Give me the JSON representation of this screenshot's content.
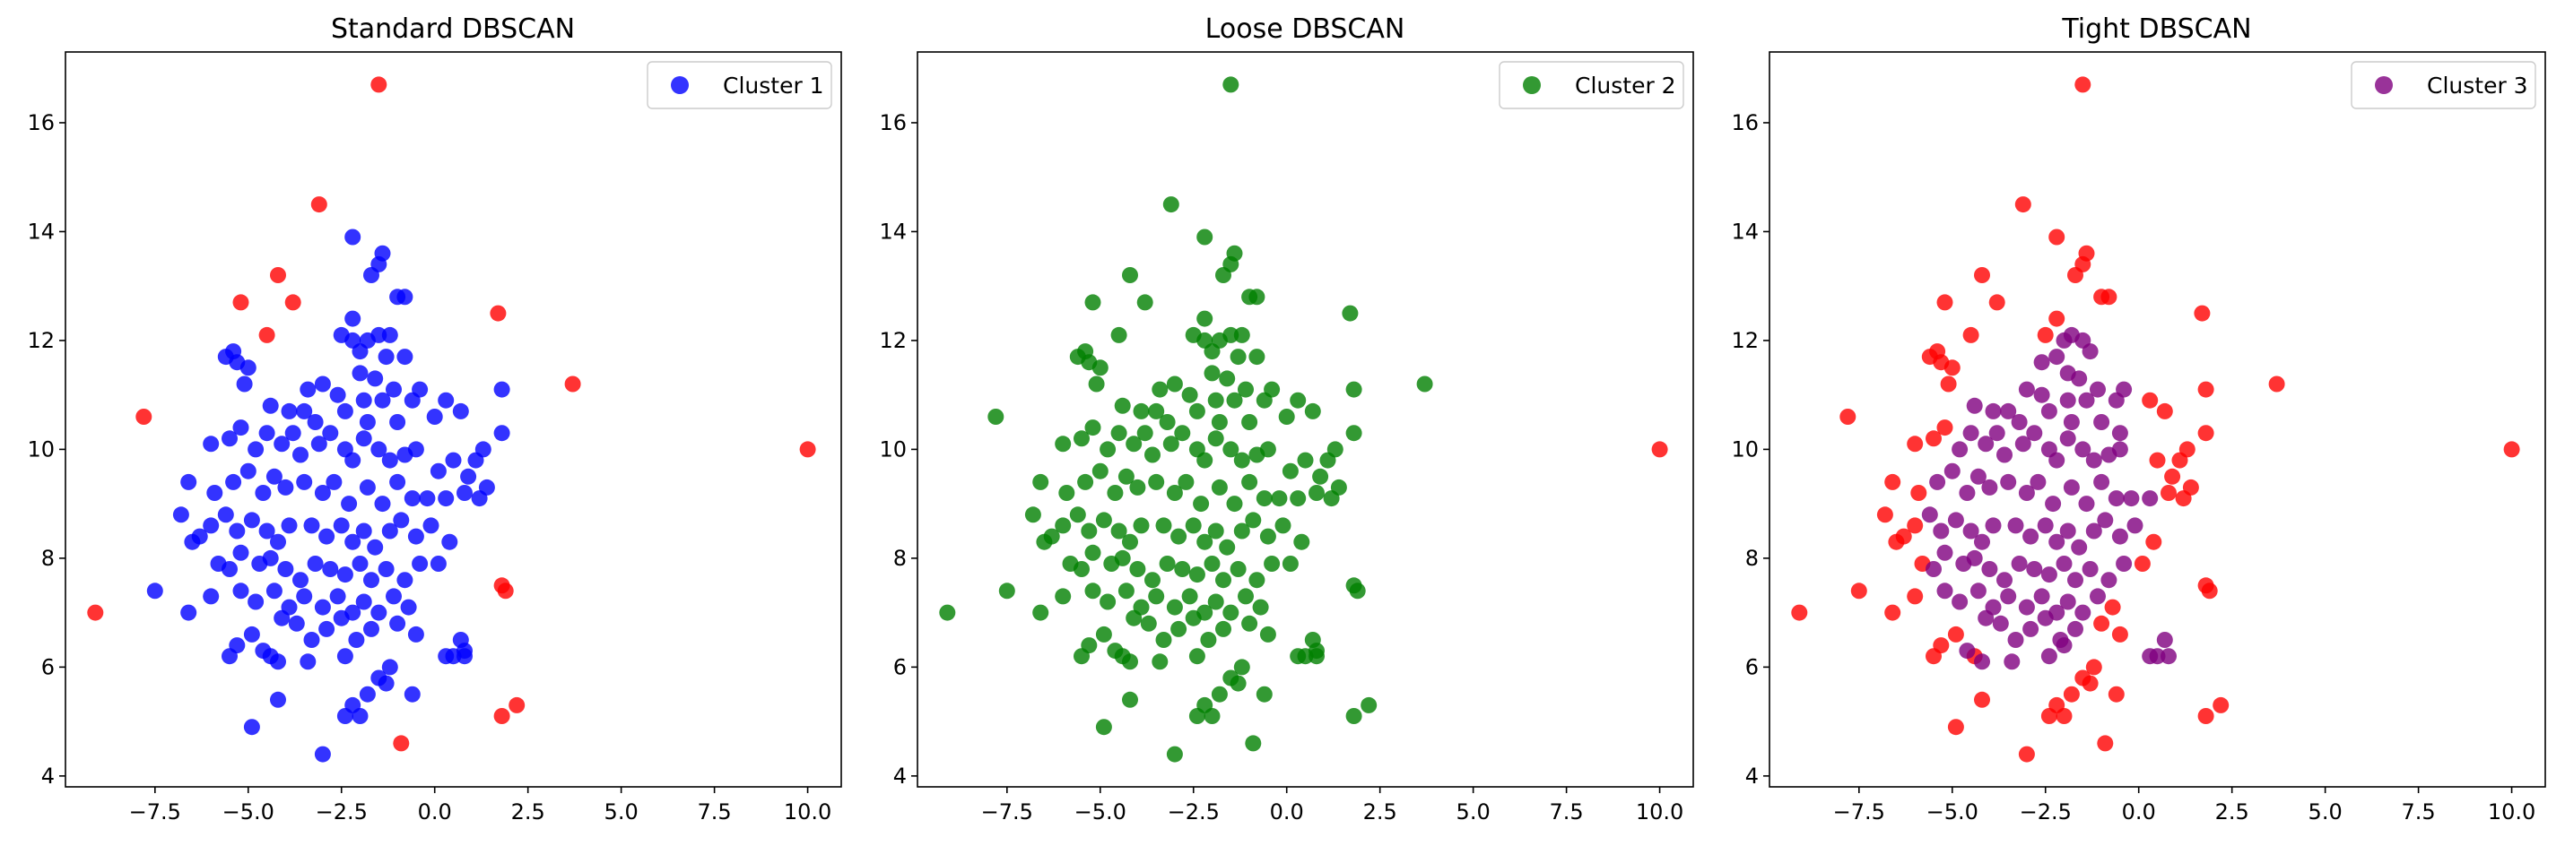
{
  "chart_data": [
    {
      "type": "scatter",
      "title": "Standard DBSCAN",
      "xlabel": "",
      "ylabel": "",
      "xlim": [
        -9.9,
        10.9
      ],
      "ylim": [
        3.8,
        17.3
      ],
      "xticks": [
        -7.5,
        -5.0,
        -2.5,
        0.0,
        2.5,
        5.0,
        7.5,
        10.0
      ],
      "xtick_labels": [
        "−7.5",
        "−5.0",
        "−2.5",
        "0.0",
        "2.5",
        "5.0",
        "7.5",
        "10.0"
      ],
      "yticks": [
        4,
        6,
        8,
        10,
        12,
        14,
        16
      ],
      "ytick_labels": [
        "4",
        "6",
        "8",
        "10",
        "12",
        "14",
        "16"
      ],
      "grid": false,
      "legend_position": "top-right",
      "series": [
        {
          "name": "Cluster 1",
          "color": "#0000ff",
          "points": "core"
        },
        {
          "color": "#ff0000",
          "points": "noise_standard"
        }
      ]
    },
    {
      "type": "scatter",
      "title": "Loose DBSCAN",
      "xlabel": "",
      "ylabel": "",
      "xlim": [
        -9.9,
        10.9
      ],
      "ylim": [
        3.8,
        17.3
      ],
      "xticks": [
        -7.5,
        -5.0,
        -2.5,
        0.0,
        2.5,
        5.0,
        7.5,
        10.0
      ],
      "xtick_labels": [
        "−7.5",
        "−5.0",
        "−2.5",
        "0.0",
        "2.5",
        "5.0",
        "7.5",
        "10.0"
      ],
      "yticks": [
        4,
        6,
        8,
        10,
        12,
        14,
        16
      ],
      "ytick_labels": [
        "4",
        "6",
        "8",
        "10",
        "12",
        "14",
        "16"
      ],
      "grid": false,
      "legend_position": "top-right",
      "series": [
        {
          "name": "Cluster 2",
          "color": "#008000",
          "points": "loose_cluster"
        },
        {
          "color": "#ff0000",
          "points": "noise_loose"
        }
      ]
    },
    {
      "type": "scatter",
      "title": "Tight DBSCAN",
      "xlabel": "",
      "ylabel": "",
      "xlim": [
        -9.9,
        10.9
      ],
      "ylim": [
        3.8,
        17.3
      ],
      "xticks": [
        -7.5,
        -5.0,
        -2.5,
        0.0,
        2.5,
        5.0,
        7.5,
        10.0
      ],
      "xtick_labels": [
        "−7.5",
        "−5.0",
        "−2.5",
        "0.0",
        "2.5",
        "5.0",
        "7.5",
        "10.0"
      ],
      "yticks": [
        4,
        6,
        8,
        10,
        12,
        14,
        16
      ],
      "ytick_labels": [
        "4",
        "6",
        "8",
        "10",
        "12",
        "14",
        "16"
      ],
      "grid": false,
      "legend_position": "top-right",
      "series": [
        {
          "name": "Cluster 3",
          "color": "#800080",
          "points": "tight_cluster"
        },
        {
          "color": "#ff0000",
          "points": "noise_tight"
        }
      ]
    }
  ],
  "points": {
    "core": [
      [
        -2.2,
        13.9
      ],
      [
        -1.4,
        13.6
      ],
      [
        -1.5,
        13.4
      ],
      [
        -1.7,
        13.2
      ],
      [
        -0.8,
        12.8
      ],
      [
        -1.0,
        12.8
      ],
      [
        -2.2,
        12.4
      ],
      [
        -2.5,
        12.1
      ],
      [
        -2.2,
        12.0
      ],
      [
        -1.8,
        12.0
      ],
      [
        -1.5,
        12.1
      ],
      [
        -1.2,
        12.1
      ],
      [
        -2.0,
        11.8
      ],
      [
        -1.3,
        11.7
      ],
      [
        -0.8,
        11.7
      ],
      [
        -2.0,
        11.4
      ],
      [
        -1.6,
        11.3
      ],
      [
        -5.6,
        11.7
      ],
      [
        -5.4,
        11.8
      ],
      [
        -5.3,
        11.6
      ],
      [
        -5.0,
        11.5
      ],
      [
        -5.1,
        11.2
      ],
      [
        -3.4,
        11.1
      ],
      [
        -3.0,
        11.2
      ],
      [
        -2.6,
        11.0
      ],
      [
        -1.1,
        11.1
      ],
      [
        -1.9,
        10.9
      ],
      [
        -1.4,
        10.9
      ],
      [
        -0.6,
        10.9
      ],
      [
        -0.4,
        11.1
      ],
      [
        0.3,
        10.9
      ],
      [
        0.7,
        10.7
      ],
      [
        1.8,
        11.1
      ],
      [
        -4.4,
        10.8
      ],
      [
        -3.9,
        10.7
      ],
      [
        -3.5,
        10.7
      ],
      [
        -3.2,
        10.5
      ],
      [
        -2.4,
        10.7
      ],
      [
        -1.8,
        10.5
      ],
      [
        -1.0,
        10.5
      ],
      [
        0.0,
        10.6
      ],
      [
        1.3,
        10.0
      ],
      [
        1.1,
        9.8
      ],
      [
        1.8,
        10.3
      ],
      [
        -6.0,
        10.1
      ],
      [
        -5.5,
        10.2
      ],
      [
        -5.2,
        10.4
      ],
      [
        -4.8,
        10.0
      ],
      [
        -4.5,
        10.3
      ],
      [
        -4.1,
        10.1
      ],
      [
        -3.8,
        10.3
      ],
      [
        -3.6,
        9.9
      ],
      [
        -3.1,
        10.1
      ],
      [
        -2.8,
        10.3
      ],
      [
        -2.4,
        10.0
      ],
      [
        -2.2,
        9.8
      ],
      [
        -1.9,
        10.2
      ],
      [
        -1.5,
        10.0
      ],
      [
        -1.2,
        9.8
      ],
      [
        -0.8,
        9.9
      ],
      [
        -0.5,
        10.0
      ],
      [
        0.1,
        9.6
      ],
      [
        0.5,
        9.8
      ],
      [
        0.9,
        9.5
      ],
      [
        1.4,
        9.3
      ],
      [
        -6.6,
        9.4
      ],
      [
        -5.9,
        9.2
      ],
      [
        -5.4,
        9.4
      ],
      [
        -5.0,
        9.6
      ],
      [
        -4.6,
        9.2
      ],
      [
        -4.3,
        9.5
      ],
      [
        -4.0,
        9.3
      ],
      [
        -3.5,
        9.4
      ],
      [
        -3.0,
        9.2
      ],
      [
        -2.7,
        9.4
      ],
      [
        -2.3,
        9.0
      ],
      [
        -1.8,
        9.3
      ],
      [
        -1.4,
        9.0
      ],
      [
        -1.0,
        9.4
      ],
      [
        -0.6,
        9.1
      ],
      [
        -0.2,
        9.1
      ],
      [
        0.3,
        9.1
      ],
      [
        0.8,
        9.2
      ],
      [
        1.2,
        9.1
      ],
      [
        -6.8,
        8.8
      ],
      [
        -6.3,
        8.4
      ],
      [
        -6.0,
        8.6
      ],
      [
        -5.6,
        8.8
      ],
      [
        -5.3,
        8.5
      ],
      [
        -4.9,
        8.7
      ],
      [
        -4.5,
        8.5
      ],
      [
        -4.2,
        8.3
      ],
      [
        -3.9,
        8.6
      ],
      [
        -3.3,
        8.6
      ],
      [
        -2.9,
        8.4
      ],
      [
        -2.5,
        8.6
      ],
      [
        -2.2,
        8.3
      ],
      [
        -1.9,
        8.5
      ],
      [
        -1.6,
        8.2
      ],
      [
        -1.2,
        8.5
      ],
      [
        -0.9,
        8.7
      ],
      [
        -0.5,
        8.4
      ],
      [
        -0.1,
        8.6
      ],
      [
        0.4,
        8.3
      ],
      [
        -6.5,
        8.3
      ],
      [
        -5.8,
        7.9
      ],
      [
        -5.5,
        7.8
      ],
      [
        -5.2,
        8.1
      ],
      [
        -4.7,
        7.9
      ],
      [
        -4.4,
        8.0
      ],
      [
        -4.0,
        7.8
      ],
      [
        -3.6,
        7.6
      ],
      [
        -3.2,
        7.9
      ],
      [
        -2.8,
        7.8
      ],
      [
        -2.4,
        7.7
      ],
      [
        -2.0,
        7.9
      ],
      [
        -1.7,
        7.6
      ],
      [
        -1.3,
        7.8
      ],
      [
        -0.8,
        7.6
      ],
      [
        -0.4,
        7.9
      ],
      [
        0.1,
        7.9
      ],
      [
        -7.5,
        7.4
      ],
      [
        -6.0,
        7.3
      ],
      [
        -5.2,
        7.4
      ],
      [
        -4.8,
        7.2
      ],
      [
        -4.3,
        7.4
      ],
      [
        -3.9,
        7.1
      ],
      [
        -3.5,
        7.3
      ],
      [
        -3.0,
        7.1
      ],
      [
        -2.6,
        7.3
      ],
      [
        -2.2,
        7.0
      ],
      [
        -1.9,
        7.2
      ],
      [
        -1.5,
        7.0
      ],
      [
        -1.1,
        7.3
      ],
      [
        -0.7,
        7.1
      ],
      [
        -6.6,
        7.0
      ],
      [
        -4.1,
        6.9
      ],
      [
        -3.7,
        6.8
      ],
      [
        -3.3,
        6.5
      ],
      [
        -2.9,
        6.7
      ],
      [
        -2.5,
        6.9
      ],
      [
        -2.1,
        6.5
      ],
      [
        -1.7,
        6.7
      ],
      [
        -1.0,
        6.8
      ],
      [
        -0.5,
        6.6
      ],
      [
        -4.9,
        6.6
      ],
      [
        -5.3,
        6.4
      ],
      [
        -4.6,
        6.3
      ],
      [
        -4.2,
        6.1
      ],
      [
        -3.4,
        6.1
      ],
      [
        -2.4,
        6.2
      ],
      [
        -1.2,
        6.0
      ],
      [
        0.3,
        6.2
      ],
      [
        0.5,
        6.2
      ],
      [
        0.7,
        6.5
      ],
      [
        0.8,
        6.3
      ],
      [
        0.8,
        6.2
      ],
      [
        -5.5,
        6.2
      ],
      [
        -4.4,
        6.2
      ],
      [
        -1.5,
        5.8
      ],
      [
        -1.3,
        5.7
      ],
      [
        -2.2,
        5.3
      ],
      [
        -2.0,
        5.1
      ],
      [
        -2.4,
        5.1
      ],
      [
        -1.8,
        5.5
      ],
      [
        -4.2,
        5.4
      ],
      [
        -4.9,
        4.9
      ],
      [
        -0.6,
        5.5
      ],
      [
        -3.0,
        4.4
      ]
    ],
    "noise_standard": [
      [
        -1.5,
        16.7
      ],
      [
        -3.1,
        14.5
      ],
      [
        -4.2,
        13.2
      ],
      [
        -3.8,
        12.7
      ],
      [
        -5.2,
        12.7
      ],
      [
        -4.5,
        12.1
      ],
      [
        1.7,
        12.5
      ],
      [
        -7.8,
        10.6
      ],
      [
        3.7,
        11.2
      ],
      [
        10.0,
        10.0
      ],
      [
        -9.1,
        7.0
      ],
      [
        1.8,
        7.5
      ],
      [
        1.9,
        7.4
      ],
      [
        1.8,
        5.1
      ],
      [
        2.2,
        5.3
      ],
      [
        -0.9,
        4.6
      ]
    ],
    "noise_loose": [
      [
        10.0,
        10.0
      ]
    ],
    "loose_cluster_extra": [
      [
        -1.5,
        16.7
      ],
      [
        -3.1,
        14.5
      ],
      [
        -4.2,
        13.2
      ],
      [
        -3.8,
        12.7
      ],
      [
        -5.2,
        12.7
      ],
      [
        -4.5,
        12.1
      ],
      [
        1.7,
        12.5
      ],
      [
        -7.8,
        10.6
      ],
      [
        3.7,
        11.2
      ],
      [
        -9.1,
        7.0
      ],
      [
        1.8,
        7.5
      ],
      [
        1.9,
        7.4
      ],
      [
        1.8,
        5.1
      ],
      [
        2.2,
        5.3
      ],
      [
        -0.9,
        4.6
      ]
    ],
    "tight_cluster": [
      [
        -2.0,
        12.0
      ],
      [
        -1.8,
        12.1
      ],
      [
        -1.5,
        12.0
      ],
      [
        -1.3,
        11.8
      ],
      [
        -2.2,
        11.7
      ],
      [
        -2.6,
        11.6
      ],
      [
        -1.9,
        11.4
      ],
      [
        -1.6,
        11.3
      ],
      [
        -3.0,
        11.1
      ],
      [
        -2.6,
        11.0
      ],
      [
        -1.1,
        11.1
      ],
      [
        -1.9,
        10.9
      ],
      [
        -1.4,
        10.9
      ],
      [
        -0.6,
        10.9
      ],
      [
        -0.4,
        11.1
      ],
      [
        -4.4,
        10.8
      ],
      [
        -3.9,
        10.7
      ],
      [
        -3.5,
        10.7
      ],
      [
        -3.2,
        10.5
      ],
      [
        -2.4,
        10.7
      ],
      [
        -1.8,
        10.5
      ],
      [
        -1.0,
        10.5
      ],
      [
        -0.5,
        10.3
      ],
      [
        -4.8,
        10.0
      ],
      [
        -4.5,
        10.3
      ],
      [
        -4.1,
        10.1
      ],
      [
        -3.8,
        10.3
      ],
      [
        -3.6,
        9.9
      ],
      [
        -3.1,
        10.1
      ],
      [
        -2.8,
        10.3
      ],
      [
        -2.4,
        10.0
      ],
      [
        -2.2,
        9.8
      ],
      [
        -1.9,
        10.2
      ],
      [
        -1.5,
        10.0
      ],
      [
        -1.2,
        9.8
      ],
      [
        -0.8,
        9.9
      ],
      [
        -0.5,
        10.0
      ],
      [
        -5.0,
        9.6
      ],
      [
        -4.6,
        9.2
      ],
      [
        -4.3,
        9.5
      ],
      [
        -4.0,
        9.3
      ],
      [
        -3.5,
        9.4
      ],
      [
        -3.0,
        9.2
      ],
      [
        -2.7,
        9.4
      ],
      [
        -2.3,
        9.0
      ],
      [
        -1.8,
        9.3
      ],
      [
        -1.4,
        9.0
      ],
      [
        -1.0,
        9.4
      ],
      [
        -0.6,
        9.1
      ],
      [
        -0.2,
        9.1
      ],
      [
        0.3,
        9.1
      ],
      [
        -5.4,
        9.4
      ],
      [
        -5.6,
        8.8
      ],
      [
        -5.3,
        8.5
      ],
      [
        -4.9,
        8.7
      ],
      [
        -4.5,
        8.5
      ],
      [
        -4.2,
        8.3
      ],
      [
        -3.9,
        8.6
      ],
      [
        -3.3,
        8.6
      ],
      [
        -2.9,
        8.4
      ],
      [
        -2.5,
        8.6
      ],
      [
        -2.2,
        8.3
      ],
      [
        -1.9,
        8.5
      ],
      [
        -1.6,
        8.2
      ],
      [
        -1.2,
        8.5
      ],
      [
        -0.9,
        8.7
      ],
      [
        -0.5,
        8.4
      ],
      [
        -0.1,
        8.6
      ],
      [
        -5.5,
        7.8
      ],
      [
        -5.2,
        8.1
      ],
      [
        -4.7,
        7.9
      ],
      [
        -4.4,
        8.0
      ],
      [
        -4.0,
        7.8
      ],
      [
        -3.6,
        7.6
      ],
      [
        -3.2,
        7.9
      ],
      [
        -2.8,
        7.8
      ],
      [
        -2.4,
        7.7
      ],
      [
        -2.0,
        7.9
      ],
      [
        -1.7,
        7.6
      ],
      [
        -1.3,
        7.8
      ],
      [
        -0.8,
        7.6
      ],
      [
        -0.4,
        7.9
      ],
      [
        -5.2,
        7.4
      ],
      [
        -4.8,
        7.2
      ],
      [
        -4.3,
        7.4
      ],
      [
        -3.9,
        7.1
      ],
      [
        -3.5,
        7.3
      ],
      [
        -3.0,
        7.1
      ],
      [
        -2.6,
        7.3
      ],
      [
        -2.2,
        7.0
      ],
      [
        -1.9,
        7.2
      ],
      [
        -1.5,
        7.0
      ],
      [
        -1.1,
        7.3
      ],
      [
        -4.1,
        6.9
      ],
      [
        -3.7,
        6.8
      ],
      [
        -3.3,
        6.5
      ],
      [
        -2.9,
        6.7
      ],
      [
        -2.5,
        6.9
      ],
      [
        -2.1,
        6.5
      ],
      [
        -1.7,
        6.7
      ],
      [
        -4.6,
        6.3
      ],
      [
        -4.2,
        6.1
      ],
      [
        -3.4,
        6.1
      ],
      [
        -2.4,
        6.2
      ],
      [
        -2.0,
        6.4
      ],
      [
        0.3,
        6.2
      ],
      [
        0.5,
        6.2
      ],
      [
        0.7,
        6.5
      ],
      [
        0.8,
        6.2
      ]
    ],
    "noise_tight": [
      [
        -1.5,
        16.7
      ],
      [
        -3.1,
        14.5
      ],
      [
        -2.2,
        13.9
      ],
      [
        -1.4,
        13.6
      ],
      [
        -1.5,
        13.4
      ],
      [
        -1.7,
        13.2
      ],
      [
        -4.2,
        13.2
      ],
      [
        -0.8,
        12.8
      ],
      [
        -1.0,
        12.8
      ],
      [
        -3.8,
        12.7
      ],
      [
        -5.2,
        12.7
      ],
      [
        1.7,
        12.5
      ],
      [
        -2.2,
        12.4
      ],
      [
        -2.5,
        12.1
      ],
      [
        -4.5,
        12.1
      ],
      [
        -5.6,
        11.7
      ],
      [
        -5.4,
        11.8
      ],
      [
        -5.3,
        11.6
      ],
      [
        -5.0,
        11.5
      ],
      [
        -5.1,
        11.2
      ],
      [
        1.8,
        11.1
      ],
      [
        3.7,
        11.2
      ],
      [
        0.3,
        10.9
      ],
      [
        0.7,
        10.7
      ],
      [
        -7.8,
        10.6
      ],
      [
        1.8,
        10.3
      ],
      [
        1.3,
        10.0
      ],
      [
        1.1,
        9.8
      ],
      [
        0.5,
        9.8
      ],
      [
        10.0,
        10.0
      ],
      [
        -6.0,
        10.1
      ],
      [
        -5.5,
        10.2
      ],
      [
        -5.2,
        10.4
      ],
      [
        0.9,
        9.5
      ],
      [
        1.4,
        9.3
      ],
      [
        -6.6,
        9.4
      ],
      [
        -5.9,
        9.2
      ],
      [
        0.8,
        9.2
      ],
      [
        1.2,
        9.1
      ],
      [
        -6.8,
        8.8
      ],
      [
        -6.3,
        8.4
      ],
      [
        -6.0,
        8.6
      ],
      [
        0.4,
        8.3
      ],
      [
        -6.5,
        8.3
      ],
      [
        -5.8,
        7.9
      ],
      [
        0.1,
        7.9
      ],
      [
        -7.5,
        7.4
      ],
      [
        -6.0,
        7.3
      ],
      [
        1.8,
        7.5
      ],
      [
        1.9,
        7.4
      ],
      [
        -0.7,
        7.1
      ],
      [
        -6.6,
        7.0
      ],
      [
        -9.1,
        7.0
      ],
      [
        -1.0,
        6.8
      ],
      [
        -0.5,
        6.6
      ],
      [
        -4.9,
        6.6
      ],
      [
        -5.3,
        6.4
      ],
      [
        -5.5,
        6.2
      ],
      [
        -4.4,
        6.2
      ],
      [
        -1.2,
        6.0
      ],
      [
        -1.5,
        5.8
      ],
      [
        -1.3,
        5.7
      ],
      [
        -1.8,
        5.5
      ],
      [
        -0.6,
        5.5
      ],
      [
        -4.2,
        5.4
      ],
      [
        -2.2,
        5.3
      ],
      [
        -2.0,
        5.1
      ],
      [
        -2.4,
        5.1
      ],
      [
        1.8,
        5.1
      ],
      [
        2.2,
        5.3
      ],
      [
        -4.9,
        4.9
      ],
      [
        -0.9,
        4.6
      ],
      [
        -3.0,
        4.4
      ]
    ]
  }
}
